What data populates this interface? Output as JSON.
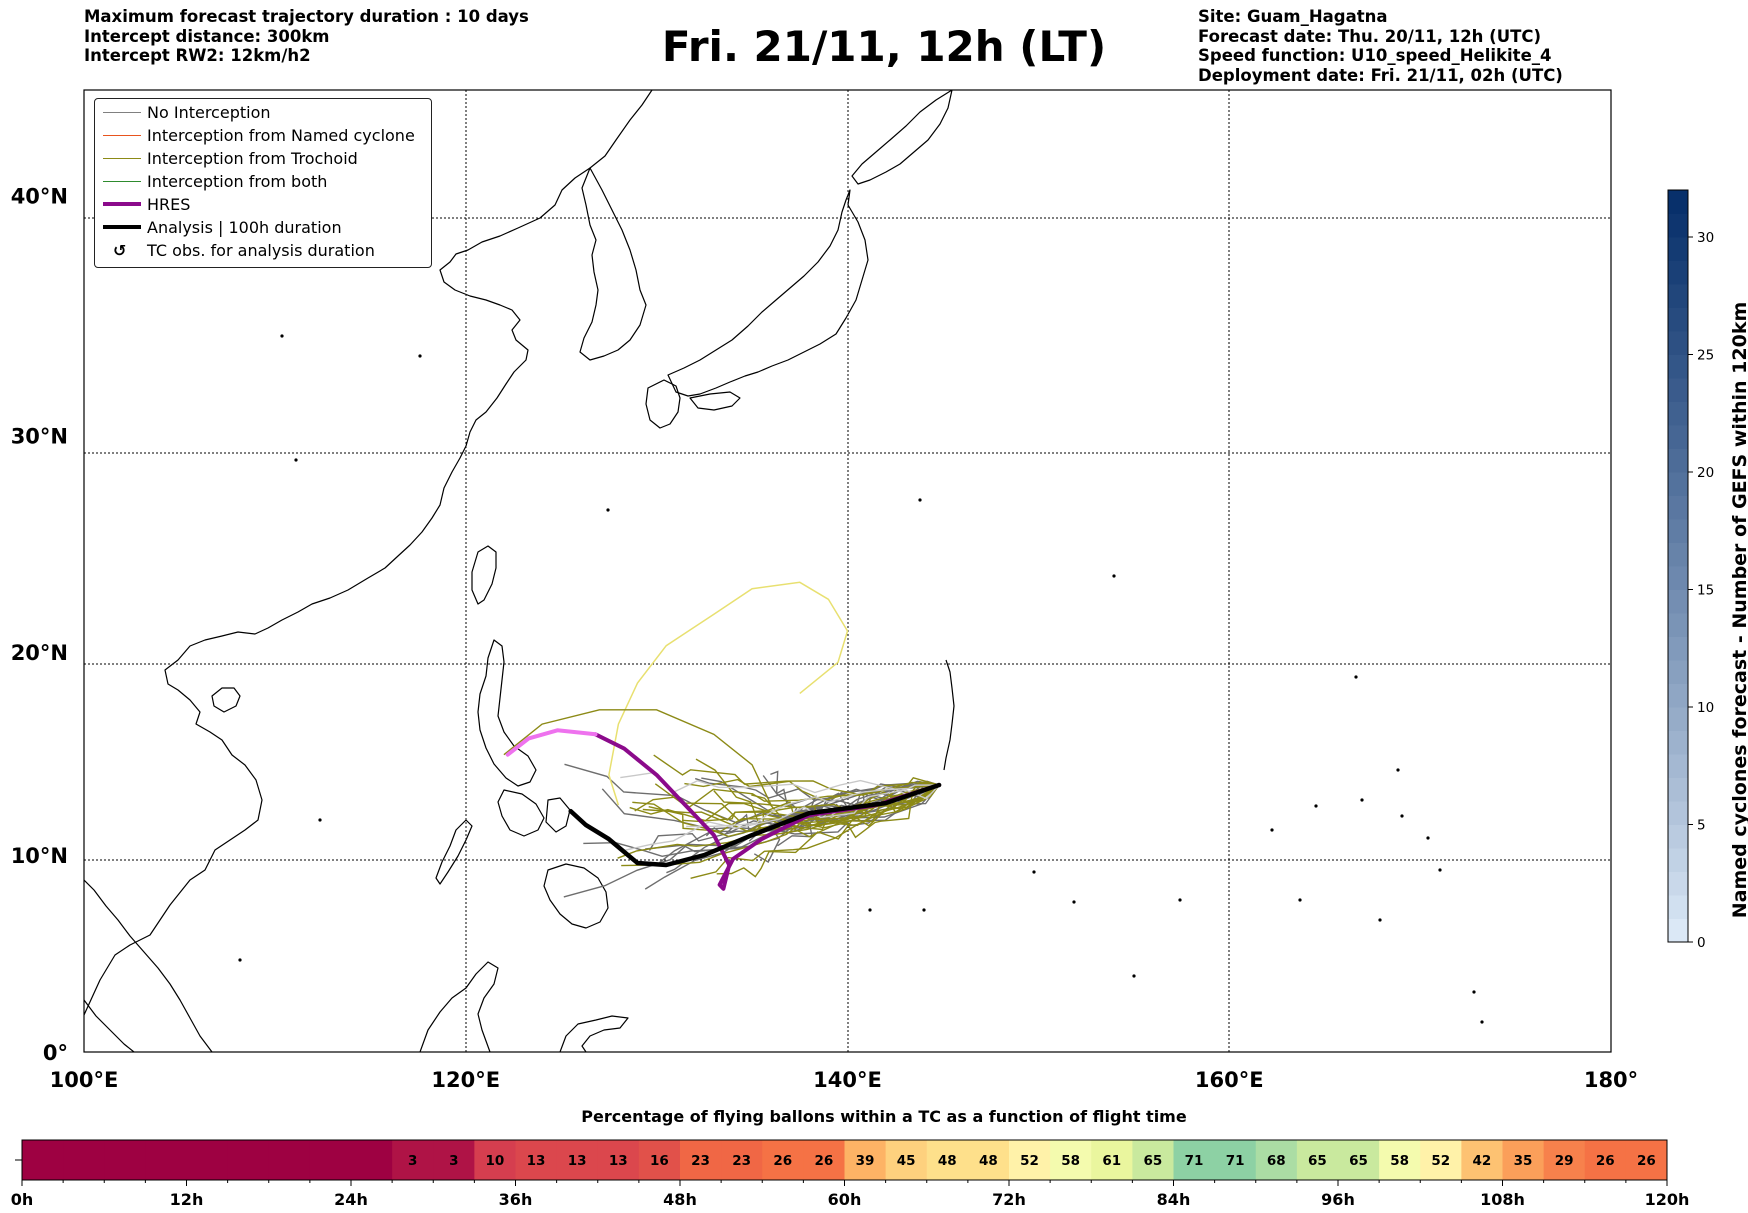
{
  "header": {
    "left_lines": [
      "Maximum forecast trajectory duration : 10 days",
      "Intercept distance: 300km",
      "Intercept RW2: 12km/h2"
    ],
    "title": "Fri. 21/11, 12h (LT)",
    "right_lines": [
      "Site: Guam_Hagatna",
      "Forecast date: Thu. 20/11, 12h (UTC)",
      "Speed function: U10_speed_Helikite_4",
      "Deployment date: Fri. 21/11, 02h (UTC)"
    ]
  },
  "map": {
    "lon_range": [
      100,
      180
    ],
    "lat_range": [
      0,
      44
    ],
    "lon_ticks": [
      "100°E",
      "120°E",
      "140°E",
      "160°E",
      "180°"
    ],
    "lat_ticks": [
      "0°",
      "10°N",
      "20°N",
      "30°N",
      "40°N"
    ],
    "grid": "dotted",
    "site": {
      "name": "Guam_Hagatna",
      "lon": 144.8,
      "lat": 13.5
    }
  },
  "legend": {
    "placement": "top-left",
    "items": [
      {
        "label": "No Interception",
        "color": "#808080",
        "style": "thin"
      },
      {
        "label": "Interception from Named cyclone",
        "color": "#e8541e",
        "style": "thin"
      },
      {
        "label": "Interception from Trochoid",
        "color": "#8c8a16",
        "style": "thin"
      },
      {
        "label": "Interception from both",
        "color": "#2e8b2e",
        "style": "thin"
      },
      {
        "label": "HRES",
        "color": "#8b0a8b",
        "style": "thick"
      },
      {
        "label": "Analysis | 100h duration",
        "color": "#000000",
        "style": "thick"
      },
      {
        "label": "TC obs. for analysis duration",
        "color": "#000000",
        "style": "symbol"
      }
    ]
  },
  "colorbar": {
    "label": "Named cyclones forecast - Number of GEFS within 120km",
    "min": 0,
    "max": 32,
    "ticks": [
      0,
      5,
      10,
      15,
      20,
      25,
      30
    ],
    "color_low": "#dbe8f6",
    "color_high": "#08306b"
  },
  "pct_bar": {
    "title": "Percentage of flying ballons within a TC as a function of flight time",
    "hours_max": 120,
    "hour_ticks": [
      "0h",
      "12h",
      "24h",
      "36h",
      "48h",
      "60h",
      "72h",
      "84h",
      "96h",
      "108h",
      "120h"
    ],
    "values": [
      null,
      null,
      null,
      null,
      null,
      null,
      null,
      null,
      null,
      3,
      3,
      10,
      13,
      13,
      13,
      16,
      23,
      23,
      26,
      26,
      39,
      45,
      48,
      48,
      52,
      58,
      61,
      65,
      71,
      71,
      68,
      65,
      65,
      58,
      52,
      42,
      35,
      29,
      26,
      26
    ]
  },
  "chart_data": {
    "type": "trajectory-map",
    "site": "Guam_Hagatna",
    "analysis_track": [
      [
        144.8,
        13.5
      ],
      [
        142,
        12.6
      ],
      [
        138,
        12.1
      ],
      [
        135,
        11
      ],
      [
        132.5,
        10
      ],
      [
        130.5,
        9.5
      ],
      [
        129,
        9.6
      ],
      [
        128.5,
        10
      ],
      [
        127.5,
        10.8
      ],
      [
        126.3,
        11.5
      ],
      [
        125.5,
        12.2
      ]
    ],
    "hres_track": [
      [
        144.8,
        13.5
      ],
      [
        141.5,
        12.5
      ],
      [
        138,
        12
      ],
      [
        135.5,
        10.8
      ],
      [
        134,
        9.8
      ],
      [
        133.3,
        8.5
      ],
      [
        133.5,
        8.3
      ],
      [
        133.8,
        9.5
      ],
      [
        133,
        11
      ],
      [
        131.5,
        12.5
      ],
      [
        130,
        14
      ],
      [
        128.3,
        15.3
      ],
      [
        126.8,
        16
      ],
      [
        124.8,
        16.2
      ],
      [
        123.3,
        15.8
      ],
      [
        122.2,
        15
      ]
    ],
    "colorbar_range": [
      0,
      32
    ]
  }
}
